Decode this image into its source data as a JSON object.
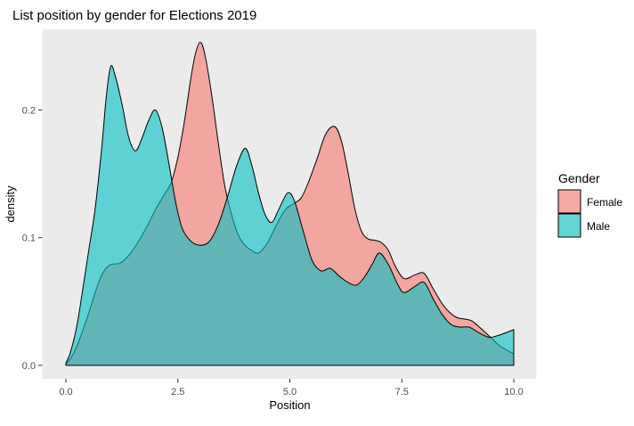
{
  "chart_data": {
    "type": "area",
    "subtype": "density",
    "title": "List position by gender for Elections 2019",
    "xlabel": "Position",
    "ylabel": "density",
    "x_ticks": [
      "0.0",
      "2.5",
      "5.0",
      "7.5",
      "10.0"
    ],
    "x_tick_values": [
      0,
      2.5,
      5,
      7.5,
      10
    ],
    "y_ticks": [
      "0.0",
      "0.1",
      "0.2"
    ],
    "y_tick_values": [
      0,
      0.1,
      0.2
    ],
    "xlim": [
      0,
      10
    ],
    "ylim": [
      0,
      0.26
    ],
    "grid": false,
    "legend": {
      "title": "Gender",
      "position": "right",
      "entries": [
        {
          "label": "Female",
          "color": "#F5A9A3"
        },
        {
          "label": "Male",
          "color": "#63D4D6"
        }
      ]
    },
    "colors": {
      "female_fill": "#F3A5A0",
      "male_fill": "rgba(0,191,196,0.6)",
      "overlap_observed": "#61B5B5",
      "outline": "#000000",
      "panel_bg": "#EBEBEB",
      "axis_text": "#4D4D4D"
    },
    "series": [
      {
        "name": "Female",
        "points": [
          [
            0.0,
            0.001
          ],
          [
            0.15,
            0.008
          ],
          [
            0.3,
            0.02
          ],
          [
            0.5,
            0.04
          ],
          [
            0.7,
            0.062
          ],
          [
            0.85,
            0.074
          ],
          [
            1.0,
            0.079
          ],
          [
            1.2,
            0.08
          ],
          [
            1.4,
            0.086
          ],
          [
            1.6,
            0.096
          ],
          [
            1.8,
            0.108
          ],
          [
            2.0,
            0.122
          ],
          [
            2.2,
            0.134
          ],
          [
            2.35,
            0.143
          ],
          [
            2.5,
            0.163
          ],
          [
            2.65,
            0.192
          ],
          [
            2.8,
            0.227
          ],
          [
            2.9,
            0.245
          ],
          [
            3.0,
            0.253
          ],
          [
            3.1,
            0.244
          ],
          [
            3.25,
            0.213
          ],
          [
            3.4,
            0.175
          ],
          [
            3.55,
            0.14
          ],
          [
            3.7,
            0.118
          ],
          [
            3.85,
            0.102
          ],
          [
            4.0,
            0.094
          ],
          [
            4.15,
            0.09
          ],
          [
            4.3,
            0.088
          ],
          [
            4.5,
            0.096
          ],
          [
            4.7,
            0.11
          ],
          [
            4.9,
            0.122
          ],
          [
            5.1,
            0.127
          ],
          [
            5.25,
            0.131
          ],
          [
            5.4,
            0.142
          ],
          [
            5.6,
            0.161
          ],
          [
            5.8,
            0.181
          ],
          [
            6.0,
            0.187
          ],
          [
            6.15,
            0.176
          ],
          [
            6.3,
            0.151
          ],
          [
            6.45,
            0.123
          ],
          [
            6.6,
            0.105
          ],
          [
            6.75,
            0.099
          ],
          [
            6.9,
            0.098
          ],
          [
            7.05,
            0.096
          ],
          [
            7.2,
            0.09
          ],
          [
            7.35,
            0.078
          ],
          [
            7.55,
            0.068
          ],
          [
            7.8,
            0.071
          ],
          [
            8.0,
            0.072
          ],
          [
            8.2,
            0.06
          ],
          [
            8.45,
            0.046
          ],
          [
            8.7,
            0.038
          ],
          [
            8.95,
            0.036
          ],
          [
            9.1,
            0.034
          ],
          [
            9.45,
            0.023
          ],
          [
            9.7,
            0.015
          ],
          [
            10.0,
            0.009
          ]
        ]
      },
      {
        "name": "Male",
        "points": [
          [
            0.0,
            0.002
          ],
          [
            0.1,
            0.01
          ],
          [
            0.25,
            0.032
          ],
          [
            0.4,
            0.065
          ],
          [
            0.5,
            0.088
          ],
          [
            0.65,
            0.122
          ],
          [
            0.8,
            0.17
          ],
          [
            0.9,
            0.21
          ],
          [
            1.0,
            0.234
          ],
          [
            1.1,
            0.227
          ],
          [
            1.25,
            0.205
          ],
          [
            1.4,
            0.179
          ],
          [
            1.55,
            0.168
          ],
          [
            1.7,
            0.178
          ],
          [
            1.85,
            0.192
          ],
          [
            2.0,
            0.2
          ],
          [
            2.15,
            0.186
          ],
          [
            2.3,
            0.158
          ],
          [
            2.45,
            0.128
          ],
          [
            2.6,
            0.107
          ],
          [
            2.8,
            0.097
          ],
          [
            3.0,
            0.094
          ],
          [
            3.2,
            0.097
          ],
          [
            3.4,
            0.11
          ],
          [
            3.6,
            0.131
          ],
          [
            3.8,
            0.155
          ],
          [
            4.0,
            0.17
          ],
          [
            4.15,
            0.157
          ],
          [
            4.3,
            0.135
          ],
          [
            4.45,
            0.118
          ],
          [
            4.6,
            0.112
          ],
          [
            4.75,
            0.122
          ],
          [
            4.95,
            0.135
          ],
          [
            5.1,
            0.129
          ],
          [
            5.3,
            0.105
          ],
          [
            5.5,
            0.082
          ],
          [
            5.7,
            0.074
          ],
          [
            5.9,
            0.076
          ],
          [
            6.1,
            0.07
          ],
          [
            6.3,
            0.065
          ],
          [
            6.5,
            0.063
          ],
          [
            6.7,
            0.071
          ],
          [
            6.85,
            0.08
          ],
          [
            7.0,
            0.088
          ],
          [
            7.2,
            0.079
          ],
          [
            7.4,
            0.064
          ],
          [
            7.55,
            0.057
          ],
          [
            7.8,
            0.062
          ],
          [
            8.0,
            0.065
          ],
          [
            8.2,
            0.052
          ],
          [
            8.4,
            0.04
          ],
          [
            8.6,
            0.032
          ],
          [
            8.8,
            0.03
          ],
          [
            9.0,
            0.03
          ],
          [
            9.2,
            0.026
          ],
          [
            9.45,
            0.022
          ],
          [
            9.7,
            0.024
          ],
          [
            10.0,
            0.028
          ]
        ]
      }
    ]
  }
}
